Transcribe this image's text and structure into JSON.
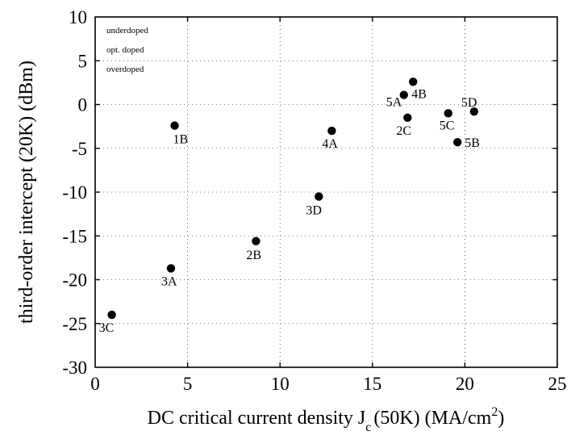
{
  "chart_data": {
    "type": "scatter",
    "xlabel": "DC critical current density J",
    "xlabel_sub": "c",
    "xlabel_tail": "(50K) (MA/cm",
    "xlabel_sup": "2",
    "xlabel_close": ")",
    "ylabel": "third-order intercept (20K) (dBm)",
    "xlim": [
      0,
      25
    ],
    "ylim": [
      -30,
      10
    ],
    "xticks": [
      0,
      5,
      10,
      15,
      20,
      25
    ],
    "yticks": [
      -30,
      -25,
      -20,
      -15,
      -10,
      -5,
      0,
      5,
      10
    ],
    "grid": true,
    "legend_position": "top-left",
    "legend": [
      "underdoped",
      "opt. doped",
      "overdoped"
    ],
    "marker_color": "#000000",
    "points": [
      {
        "label": "1B",
        "x": 4.3,
        "y": -2.4
      },
      {
        "label": "2B",
        "x": 8.7,
        "y": -15.6
      },
      {
        "label": "3A",
        "x": 4.1,
        "y": -18.7
      },
      {
        "label": "3C",
        "x": 0.9,
        "y": -24.0
      },
      {
        "label": "3D",
        "x": 12.1,
        "y": -10.5
      },
      {
        "label": "4A",
        "x": 12.8,
        "y": -3.0
      },
      {
        "label": "5A",
        "x": 16.7,
        "y": 1.1
      },
      {
        "label": "4B",
        "x": 17.2,
        "y": 2.6
      },
      {
        "label": "2C",
        "x": 16.9,
        "y": -1.5
      },
      {
        "label": "5C",
        "x": 19.1,
        "y": -1.0
      },
      {
        "label": "5D",
        "x": 20.5,
        "y": -0.8
      },
      {
        "label": "5B",
        "x": 19.6,
        "y": -4.3
      }
    ]
  }
}
